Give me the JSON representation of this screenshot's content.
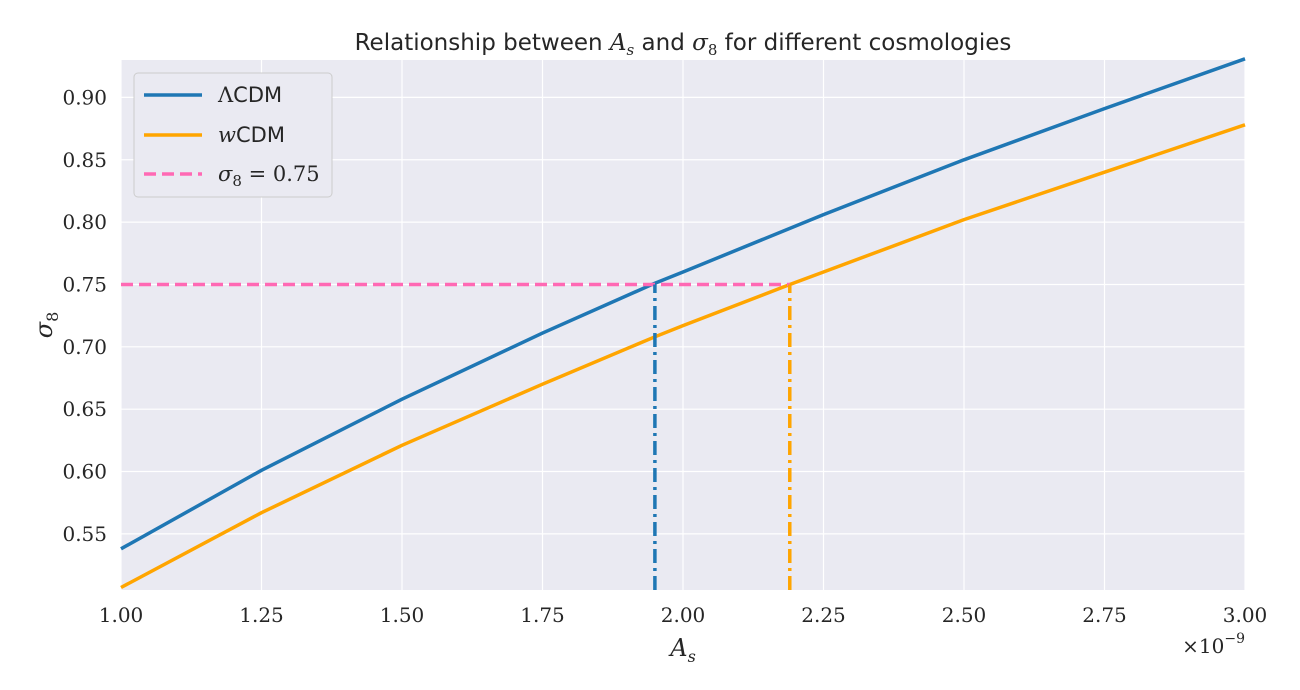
{
  "chart_data": {
    "type": "line",
    "title": "Relationship between A_s and σ8 for different cosmologies",
    "xlabel": "A_s",
    "ylabel": "σ8",
    "x_offset_label": "×10⁻⁹",
    "xlim": [
      1.0,
      3.0
    ],
    "ylim": [
      0.505,
      0.93
    ],
    "x_ticks": [
      "1.00",
      "1.25",
      "1.50",
      "1.75",
      "2.00",
      "2.25",
      "2.50",
      "2.75",
      "3.00"
    ],
    "y_ticks": [
      "0.55",
      "0.60",
      "0.65",
      "0.70",
      "0.75",
      "0.80",
      "0.85",
      "0.90"
    ],
    "grid": true,
    "legend_position": "top-left",
    "series": [
      {
        "name": "ΛCDM",
        "color": "#1f77b4",
        "style": "solid",
        "x": [
          1.0,
          1.25,
          1.5,
          1.75,
          1.95,
          2.0,
          2.25,
          2.5,
          2.75,
          3.0
        ],
        "y": [
          0.538,
          0.601,
          0.658,
          0.711,
          0.751,
          0.76,
          0.806,
          0.85,
          0.891,
          0.931
        ]
      },
      {
        "name": "wCDM",
        "color": "#ffa500",
        "style": "solid",
        "x": [
          1.0,
          1.25,
          1.5,
          1.75,
          1.95,
          2.0,
          2.19,
          2.25,
          2.5,
          2.75,
          3.0
        ],
        "y": [
          0.507,
          0.567,
          0.621,
          0.67,
          0.708,
          0.717,
          0.75,
          0.76,
          0.802,
          0.84,
          0.878
        ]
      },
      {
        "name": "σ8 = 0.75",
        "color": "#ff69b4",
        "style": "dashed",
        "x": [
          1.0,
          2.19
        ],
        "y": [
          0.75,
          0.75
        ]
      }
    ],
    "reference_lines": [
      {
        "color": "#1f77b4",
        "style": "dashdot",
        "x": 1.95,
        "y_to": 0.75
      },
      {
        "color": "#ffa500",
        "style": "dashdot",
        "x": 2.19,
        "y_to": 0.75
      }
    ],
    "colors": {
      "plot_bg": "#eaeaf2",
      "grid": "#ffffff",
      "text": "#262626"
    }
  }
}
